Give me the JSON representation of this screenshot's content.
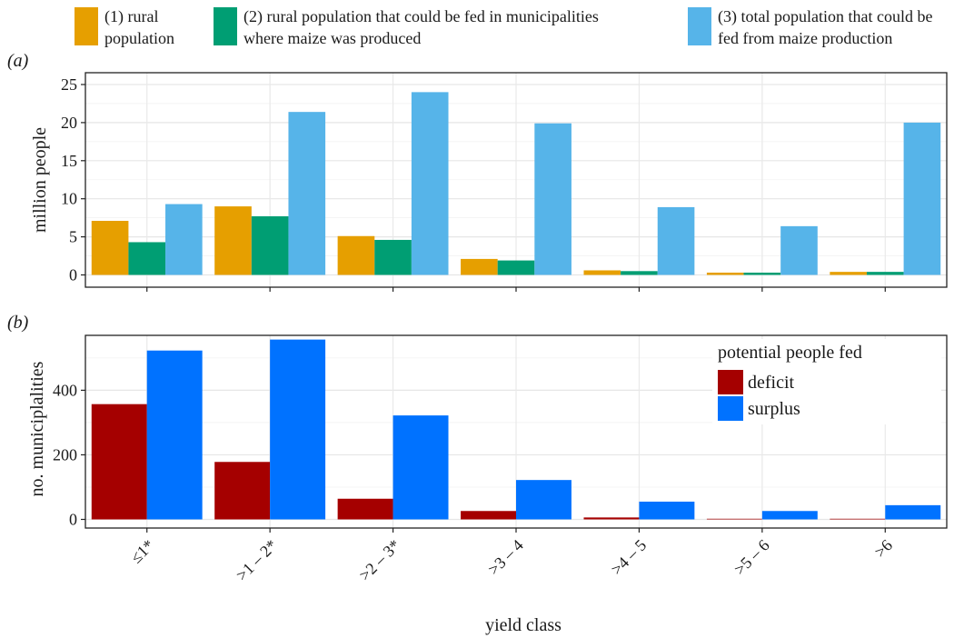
{
  "figure": {
    "x_axis_title": "yield class",
    "top_legend": [
      {
        "line1": "(1) rural",
        "line2": "population",
        "color": "#E69F00"
      },
      {
        "line1": "(2) rural population that could be fed in municipalities",
        "line2": "where maize was produced",
        "color": "#009E73"
      },
      {
        "line1": "(3) total population that could be",
        "line2": "fed from maize production",
        "color": "#56B4E9"
      }
    ]
  },
  "chart_data": [
    {
      "panel_label": "(a)",
      "type": "bar",
      "ylabel": "million people",
      "xlabel": "yield class",
      "ylim": [
        0,
        25
      ],
      "yticks": [
        0,
        5,
        10,
        15,
        20,
        25
      ],
      "grid": true,
      "categories": [
        "≤1*",
        ">1 – 2*",
        ">2 – 3*",
        ">3 – 4",
        ">4 – 5",
        ">5 – 6",
        ">6"
      ],
      "series": [
        {
          "name": "(1) rural population",
          "color": "#E69F00",
          "values": [
            7.1,
            9.0,
            5.1,
            2.1,
            0.6,
            0.3,
            0.4
          ]
        },
        {
          "name": "(2) rural population that could be fed in municipalities where maize was produced",
          "color": "#009E73",
          "values": [
            4.3,
            7.7,
            4.6,
            1.9,
            0.5,
            0.3,
            0.4
          ]
        },
        {
          "name": "(3) total population that could be fed from maize production",
          "color": "#56B4E9",
          "values": [
            9.3,
            21.4,
            24.0,
            19.9,
            8.9,
            6.4,
            20.0
          ]
        }
      ]
    },
    {
      "panel_label": "(b)",
      "type": "bar",
      "ylabel": "no. municiplalities",
      "xlabel": "yield class",
      "ylim": [
        0,
        570
      ],
      "yticks": [
        0,
        200,
        400
      ],
      "grid": true,
      "categories": [
        "≤1*",
        ">1 – 2*",
        ">2 – 3*",
        ">3 – 4",
        ">4 – 5",
        ">5 – 6",
        ">6"
      ],
      "legend_title": "potential people fed",
      "legend_position": "top-right",
      "series": [
        {
          "name": "deficit",
          "color": "#A50000",
          "values": [
            357,
            178,
            64,
            26,
            6,
            2,
            2
          ]
        },
        {
          "name": "surplus",
          "color": "#0072FF",
          "values": [
            523,
            557,
            322,
            122,
            55,
            26,
            44
          ]
        }
      ]
    }
  ]
}
